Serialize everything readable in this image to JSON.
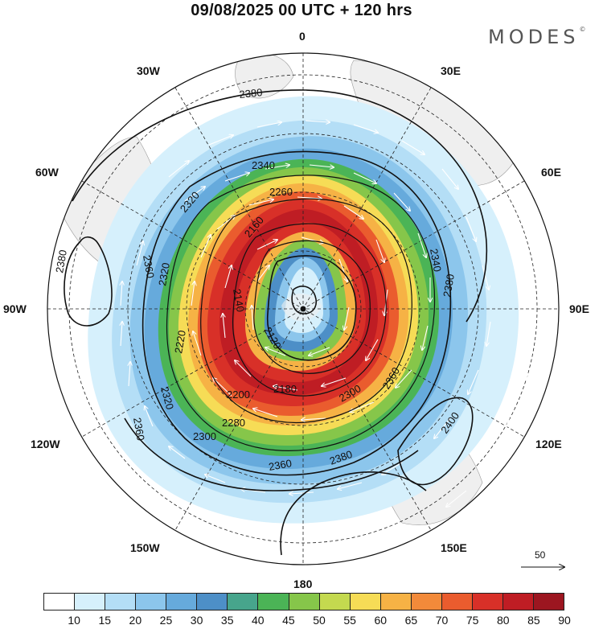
{
  "title": "09/08/2025  00 UTC  + 120 hrs",
  "brand": "MODES",
  "brand_mark": "©",
  "lon_labels": {
    "n": "0",
    "e30": "30E",
    "e60": "60E",
    "e90": "90E",
    "e120": "120E",
    "e150": "150E",
    "s": "180",
    "w150": "150W",
    "w120": "120W",
    "w90": "90W",
    "w60": "60W",
    "w30": "30W"
  },
  "contours": {
    "c1": "2380",
    "c2": "2340",
    "c3": "2260",
    "c4": "2160",
    "c5": "2140",
    "c6": "2120",
    "c7": "2180",
    "c8": "2200",
    "c9": "2280",
    "c10": "2300",
    "c11": "2360",
    "c12": "2320",
    "c13": "2220",
    "c14": "2360",
    "c15": "2320",
    "c16": "2380",
    "c17": "2340",
    "c18": "2380",
    "c19": "2360",
    "c20": "2400",
    "c21": "2380",
    "c22": "2300",
    "c23": "2360",
    "c24": "2320"
  },
  "vector_reference": "50",
  "colorbar": {
    "colors": [
      "#ffffff",
      "#d6f0fc",
      "#b4def6",
      "#8cc6ec",
      "#66aadc",
      "#4d8fc7",
      "#47a58c",
      "#4bb456",
      "#86c64a",
      "#c4d94f",
      "#f6dc56",
      "#f6b245",
      "#f28a3a",
      "#ea5c2e",
      "#d83028",
      "#bf1d24",
      "#9c1620"
    ],
    "labels": [
      "10",
      "15",
      "20",
      "25",
      "30",
      "35",
      "40",
      "45",
      "50",
      "55",
      "60",
      "65",
      "70",
      "75",
      "80",
      "85",
      "90"
    ]
  }
}
